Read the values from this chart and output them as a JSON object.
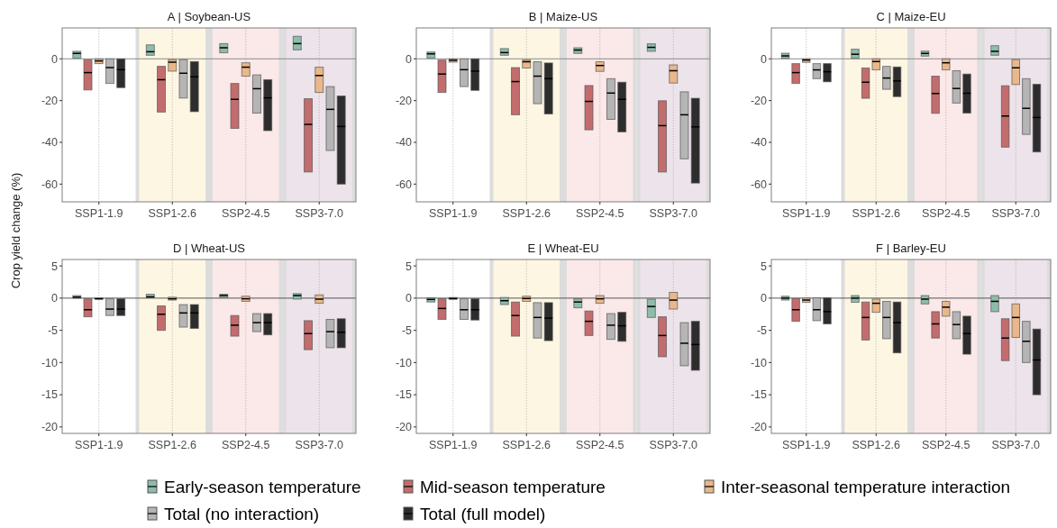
{
  "chart_data": [
    {
      "type": "box",
      "title": "A | Soybean-US",
      "ylabel": "Crop yield change (%)",
      "legend": "bottom",
      "grid": "x",
      "categories": [
        "SSP1-1.9",
        "SSP1-2.6",
        "SSP2-4.5",
        "SSP3-7.0"
      ],
      "ylim": [
        -68.5,
        14.8
      ],
      "yticks": [
        -60,
        -40,
        -20,
        0
      ],
      "ref_lines": [
        {
          "axis": "y",
          "value": 0,
          "color": "#8c8c8c"
        }
      ],
      "bands": [
        {
          "axis": "x",
          "from": "SSP1-2.6",
          "to": "SSP1-2.6",
          "color": "#fdf6e3"
        },
        {
          "axis": "x",
          "from": "SSP2-4.5",
          "to": "SSP2-4.5",
          "color": "#fbe8e8"
        },
        {
          "axis": "x",
          "from": "SSP3-7.0",
          "to": "SSP3-7.0",
          "color": "#ede3ea"
        }
      ],
      "series": [
        {
          "name": "Early-season temperature",
          "color": "#8dbdaa",
          "boxes": [
            {
              "low": 0.4,
              "q1": 0.4,
              "median": 2.6,
              "q3": 3.6,
              "high": 3.6
            },
            {
              "low": 1.7,
              "q1": 1.7,
              "median": 3.4,
              "q3": 6.7,
              "high": 6.7
            },
            {
              "low": 2.9,
              "q1": 2.9,
              "median": 5.3,
              "q3": 7.3,
              "high": 7.3
            },
            {
              "low": 4.3,
              "q1": 4.3,
              "median": 7.3,
              "q3": 10.8,
              "high": 10.8
            }
          ]
        },
        {
          "name": "Mid-season temperature",
          "color": "#c36c6e",
          "boxes": [
            {
              "low": -14.9,
              "q1": -14.9,
              "median": -6.6,
              "q3": -0.4,
              "high": -0.4
            },
            {
              "low": -25.5,
              "q1": -25.5,
              "median": -10,
              "q3": -3.6,
              "high": -3.6
            },
            {
              "low": -33.3,
              "q1": -33.3,
              "median": -19.4,
              "q3": -11.8,
              "high": -11.8
            },
            {
              "low": -54.2,
              "q1": -54.2,
              "median": -31.4,
              "q3": -19.1,
              "high": -19.1
            }
          ]
        },
        {
          "name": "Inter-seasonal temperature interaction",
          "color": "#e9b88a",
          "boxes": [
            {
              "low": -2.3,
              "q1": -2.3,
              "median": -1,
              "q3": 0,
              "high": 0
            },
            {
              "low": -5.9,
              "q1": -5.9,
              "median": -1.6,
              "q3": -0.4,
              "high": -0.4
            },
            {
              "low": -8.3,
              "q1": -8.3,
              "median": -4,
              "q3": -1.9,
              "high": -1.9
            },
            {
              "low": -16.1,
              "q1": -16.1,
              "median": -8,
              "q3": -4,
              "high": -4
            }
          ]
        },
        {
          "name": "Total (no interaction)",
          "color": "#b5b5b5",
          "boxes": [
            {
              "low": -11.8,
              "q1": -11.8,
              "median": -4.2,
              "q3": 0,
              "high": 0
            },
            {
              "low": -18.8,
              "q1": -18.8,
              "median": -6.9,
              "q3": -0.4,
              "high": -0.4
            },
            {
              "low": -26,
              "q1": -26,
              "median": -14.3,
              "q3": -7.7,
              "high": -7.7
            },
            {
              "low": -43.9,
              "q1": -43.9,
              "median": -24.2,
              "q3": -13.3,
              "high": -13.3
            }
          ]
        },
        {
          "name": "Total (full model)",
          "color": "#2d2d2d",
          "boxes": [
            {
              "low": -13.8,
              "q1": -13.8,
              "median": -5.2,
              "q3": 0,
              "high": 0
            },
            {
              "low": -25.3,
              "q1": -25.3,
              "median": -8.6,
              "q3": -1.3,
              "high": -1.3
            },
            {
              "low": -34.4,
              "q1": -34.4,
              "median": -18.7,
              "q3": -10,
              "high": -10
            },
            {
              "low": -60,
              "q1": -60,
              "median": -32.4,
              "q3": -17.8,
              "high": -17.8
            }
          ]
        }
      ]
    },
    {
      "type": "box",
      "title": "B | Maize-US",
      "grid": "x",
      "categories": [
        "SSP1-1.9",
        "SSP1-2.6",
        "SSP2-4.5",
        "SSP3-7.0"
      ],
      "ylim": [
        -68.5,
        14.8
      ],
      "yticks": [
        -60,
        -40,
        -20,
        0
      ],
      "ref_lines": [
        {
          "axis": "y",
          "value": 0,
          "color": "#8c8c8c"
        }
      ],
      "bands": [
        {
          "axis": "x",
          "from": "SSP1-2.6",
          "to": "SSP1-2.6",
          "color": "#fdf6e3"
        },
        {
          "axis": "x",
          "from": "SSP2-4.5",
          "to": "SSP2-4.5",
          "color": "#fbe8e8"
        },
        {
          "axis": "x",
          "from": "SSP3-7.0",
          "to": "SSP3-7.0",
          "color": "#ede3ea"
        }
      ],
      "series": [
        {
          "color": "#8dbdaa",
          "boxes": [
            {
              "low": 0.4,
              "q1": 0.4,
              "median": 2.4,
              "q3": 3.3,
              "high": 3.3
            },
            {
              "low": 1.7,
              "q1": 1.7,
              "median": 3,
              "q3": 4.9,
              "high": 4.9
            },
            {
              "low": 2.6,
              "q1": 2.6,
              "median": 4.2,
              "q3": 5.3,
              "high": 5.3
            },
            {
              "low": 3.6,
              "q1": 3.6,
              "median": 5.5,
              "q3": 7.2,
              "high": 7.2
            }
          ]
        },
        {
          "color": "#c36c6e",
          "boxes": [
            {
              "low": -16.1,
              "q1": -16.1,
              "median": -7.3,
              "q3": -0.6,
              "high": -0.6
            },
            {
              "low": -26.8,
              "q1": -26.8,
              "median": -10.9,
              "q3": -4.2,
              "high": -4.2
            },
            {
              "low": -34,
              "q1": -34,
              "median": -20.4,
              "q3": -12.8,
              "high": -12.8
            },
            {
              "low": -54.2,
              "q1": -54.2,
              "median": -32,
              "q3": -20.1,
              "high": -20.1
            }
          ]
        },
        {
          "color": "#e9b88a",
          "boxes": [
            {
              "low": -1.6,
              "q1": -1.6,
              "median": -0.7,
              "q3": 0,
              "high": 0
            },
            {
              "low": -4.4,
              "q1": -4.4,
              "median": -1.4,
              "q3": -0.6,
              "high": -0.6
            },
            {
              "low": -6,
              "q1": -6,
              "median": -3.2,
              "q3": -1.4,
              "high": -1.4
            },
            {
              "low": -11.6,
              "q1": -11.6,
              "median": -5.7,
              "q3": -2.9,
              "high": -2.9
            }
          ]
        },
        {
          "color": "#b5b5b5",
          "boxes": [
            {
              "low": -13.3,
              "q1": -13.3,
              "median": -5.2,
              "q3": 0,
              "high": 0
            },
            {
              "low": -21.5,
              "q1": -21.5,
              "median": -8.3,
              "q3": -1.4,
              "high": -1.4
            },
            {
              "low": -29,
              "q1": -29,
              "median": -16.4,
              "q3": -9.5,
              "high": -9.5
            },
            {
              "low": -47.9,
              "q1": -47.9,
              "median": -26.8,
              "q3": -15.8,
              "high": -15.8
            }
          ]
        },
        {
          "color": "#2d2d2d",
          "boxes": [
            {
              "low": -15.1,
              "q1": -15.1,
              "median": -5.9,
              "q3": 0,
              "high": 0
            },
            {
              "low": -26.4,
              "q1": -26.4,
              "median": -9.5,
              "q3": -2,
              "high": -2
            },
            {
              "low": -35,
              "q1": -35,
              "median": -19.4,
              "q3": -11.2,
              "high": -11.2
            },
            {
              "low": -59.5,
              "q1": -59.5,
              "median": -32.6,
              "q3": -18.9,
              "high": -18.9
            }
          ]
        }
      ]
    },
    {
      "type": "box",
      "title": "C | Maize-EU",
      "grid": "x",
      "categories": [
        "SSP1-1.9",
        "SSP1-2.6",
        "SSP2-4.5",
        "SSP3-7.0"
      ],
      "ylim": [
        -68.5,
        14.8
      ],
      "yticks": [
        -60,
        -40,
        -20,
        0
      ],
      "ref_lines": [
        {
          "axis": "y",
          "value": 0,
          "color": "#8c8c8c"
        }
      ],
      "bands": [
        {
          "axis": "x",
          "from": "SSP1-2.6",
          "to": "SSP1-2.6",
          "color": "#fdf6e3"
        },
        {
          "axis": "x",
          "from": "SSP2-4.5",
          "to": "SSP2-4.5",
          "color": "#fbe8e8"
        },
        {
          "axis": "x",
          "from": "SSP3-7.0",
          "to": "SSP3-7.0",
          "color": "#ede3ea"
        }
      ],
      "series": [
        {
          "color": "#8dbdaa",
          "boxes": [
            {
              "low": 0.3,
              "q1": 0.3,
              "median": 1.4,
              "q3": 2.7,
              "high": 2.7
            },
            {
              "low": 0.3,
              "q1": 0.3,
              "median": 2.2,
              "q3": 4.6,
              "high": 4.6
            },
            {
              "low": 1.3,
              "q1": 1.3,
              "median": 2.6,
              "q3": 3.7,
              "high": 3.7
            },
            {
              "low": 1.7,
              "q1": 1.7,
              "median": 3.6,
              "q3": 6.3,
              "high": 6.3
            }
          ]
        },
        {
          "color": "#c36c6e",
          "boxes": [
            {
              "low": -11.8,
              "q1": -11.8,
              "median": -6.6,
              "q3": -2.3,
              "high": -2.3
            },
            {
              "low": -18.9,
              "q1": -18.9,
              "median": -11.2,
              "q3": -4.4,
              "high": -4.4
            },
            {
              "low": -26.1,
              "q1": -26.1,
              "median": -16.6,
              "q3": -8.3,
              "high": -8.3
            },
            {
              "low": -42.3,
              "q1": -42.3,
              "median": -27.4,
              "q3": -12.9,
              "high": -12.9
            }
          ]
        },
        {
          "color": "#e9b88a",
          "boxes": [
            {
              "low": -1.7,
              "q1": -1.7,
              "median": -0.6,
              "q3": 0,
              "high": 0
            },
            {
              "low": -5.3,
              "q1": -5.3,
              "median": -1.3,
              "q3": 0,
              "high": 0
            },
            {
              "low": -5.3,
              "q1": -5.3,
              "median": -1.9,
              "q3": 0,
              "high": 0
            },
            {
              "low": -12.3,
              "q1": -12.3,
              "median": -4.3,
              "q3": -0.3,
              "high": -0.3
            }
          ]
        },
        {
          "color": "#b5b5b5",
          "boxes": [
            {
              "low": -9.5,
              "q1": -9.5,
              "median": -5.3,
              "q3": -2.3,
              "high": -2.3
            },
            {
              "low": -14.6,
              "q1": -14.6,
              "median": -9.2,
              "q3": -3.6,
              "high": -3.6
            },
            {
              "low": -21.2,
              "q1": -21.2,
              "median": -14.2,
              "q3": -5.7,
              "high": -5.7
            },
            {
              "low": -36.2,
              "q1": -36.2,
              "median": -23.7,
              "q3": -9.5,
              "high": -9.5
            }
          ]
        },
        {
          "color": "#2d2d2d",
          "boxes": [
            {
              "low": -11,
              "q1": -11,
              "median": -6.2,
              "q3": -2.3,
              "high": -2.3
            },
            {
              "low": -18.1,
              "q1": -18.1,
              "median": -10.6,
              "q3": -3.9,
              "high": -3.9
            },
            {
              "low": -26,
              "q1": -26,
              "median": -16.5,
              "q3": -7.3,
              "high": -7.3
            },
            {
              "low": -44.6,
              "q1": -44.6,
              "median": -28.1,
              "q3": -12.2,
              "high": -12.2
            }
          ]
        }
      ]
    },
    {
      "type": "box",
      "title": "D | Wheat-US",
      "grid": "x",
      "categories": [
        "SSP1-1.9",
        "SSP1-2.6",
        "SSP2-4.5",
        "SSP3-7.0"
      ],
      "ylim": [
        -21,
        6
      ],
      "yticks": [
        -20,
        -15,
        -10,
        -5,
        0,
        5
      ],
      "ref_lines": [
        {
          "axis": "y",
          "value": 0,
          "color": "#555555"
        }
      ],
      "bands": [
        {
          "axis": "x",
          "from": "SSP1-2.6",
          "to": "SSP1-2.6",
          "color": "#fdf6e3"
        },
        {
          "axis": "x",
          "from": "SSP2-4.5",
          "to": "SSP2-4.5",
          "color": "#fbe8e8"
        },
        {
          "axis": "x",
          "from": "SSP3-7.0",
          "to": "SSP3-7.0",
          "color": "#ede3ea"
        }
      ],
      "series": [
        {
          "color": "#8dbdaa",
          "boxes": [
            {
              "low": 0,
              "q1": 0,
              "median": 0.15,
              "q3": 0.4,
              "high": 0.4
            },
            {
              "low": 0.05,
              "q1": 0.05,
              "median": 0.2,
              "q3": 0.6,
              "high": 0.6
            },
            {
              "low": 0.05,
              "q1": 0.05,
              "median": 0.4,
              "q3": 0.6,
              "high": 0.6
            },
            {
              "low": -0.15,
              "q1": -0.15,
              "median": 0.4,
              "q3": 0.7,
              "high": 0.7
            }
          ]
        },
        {
          "color": "#c36c6e",
          "boxes": [
            {
              "low": -2.9,
              "q1": -2.9,
              "median": -1.8,
              "q3": -0.1,
              "high": -0.1
            },
            {
              "low": -5,
              "q1": -5,
              "median": -2.5,
              "q3": -1.2,
              "high": -1.2
            },
            {
              "low": -5.9,
              "q1": -5.9,
              "median": -4.2,
              "q3": -2.7,
              "high": -2.7
            },
            {
              "low": -8,
              "q1": -8,
              "median": -5.5,
              "q3": -3.5,
              "high": -3.5
            }
          ]
        },
        {
          "color": "#e9b88a",
          "boxes": [
            {
              "low": -0.15,
              "q1": -0.15,
              "median": -0.1,
              "q3": 0,
              "high": 0
            },
            {
              "low": -0.3,
              "q1": -0.3,
              "median": -0.1,
              "q3": 0.15,
              "high": 0.15
            },
            {
              "low": -0.5,
              "q1": -0.5,
              "median": -0.1,
              "q3": 0.3,
              "high": 0.3
            },
            {
              "low": -0.8,
              "q1": -0.8,
              "median": -0.15,
              "q3": 0.5,
              "high": 0.5
            }
          ]
        },
        {
          "color": "#b5b5b5",
          "boxes": [
            {
              "low": -2.7,
              "q1": -2.7,
              "median": -1.7,
              "q3": -0.1,
              "high": -0.1
            },
            {
              "low": -4.5,
              "q1": -4.5,
              "median": -2.3,
              "q3": -1,
              "high": -1
            },
            {
              "low": -5.2,
              "q1": -5.2,
              "median": -3.8,
              "q3": -2.4,
              "high": -2.4
            },
            {
              "low": -7.7,
              "q1": -7.7,
              "median": -5.2,
              "q3": -3.3,
              "high": -3.3
            }
          ]
        },
        {
          "color": "#2d2d2d",
          "boxes": [
            {
              "low": -2.7,
              "q1": -2.7,
              "median": -1.7,
              "q3": -0.1,
              "high": -0.1
            },
            {
              "low": -4.7,
              "q1": -4.7,
              "median": -2.3,
              "q3": -1,
              "high": -1
            },
            {
              "low": -5.7,
              "q1": -5.7,
              "median": -3.8,
              "q3": -2.4,
              "high": -2.4
            },
            {
              "low": -7.7,
              "q1": -7.7,
              "median": -5.3,
              "q3": -3.2,
              "high": -3.2
            }
          ]
        }
      ]
    },
    {
      "type": "box",
      "title": "E | Wheat-EU",
      "grid": "x",
      "categories": [
        "SSP1-1.9",
        "SSP1-2.6",
        "SSP2-4.5",
        "SSP3-7.0"
      ],
      "ylim": [
        -21,
        6
      ],
      "yticks": [
        -20,
        -15,
        -10,
        -5,
        0,
        5
      ],
      "ref_lines": [
        {
          "axis": "y",
          "value": 0,
          "color": "#555555"
        }
      ],
      "bands": [
        {
          "axis": "x",
          "from": "SSP1-2.6",
          "to": "SSP1-2.6",
          "color": "#fdf6e3"
        },
        {
          "axis": "x",
          "from": "SSP2-4.5",
          "to": "SSP2-4.5",
          "color": "#fbe8e8"
        },
        {
          "axis": "x",
          "from": "SSP3-7.0",
          "to": "SSP3-7.0",
          "color": "#ede3ea"
        }
      ],
      "series": [
        {
          "color": "#8dbdaa",
          "boxes": [
            {
              "low": -0.6,
              "q1": -0.6,
              "median": -0.2,
              "q3": 0.05,
              "high": 0.05
            },
            {
              "low": -1,
              "q1": -1,
              "median": -0.4,
              "q3": 0.1,
              "high": 0.1
            },
            {
              "low": -1.5,
              "q1": -1.5,
              "median": -0.6,
              "q3": -0.1,
              "high": -0.1
            },
            {
              "low": -3,
              "q1": -3,
              "median": -1.3,
              "q3": -0.15,
              "high": -0.15
            }
          ]
        },
        {
          "color": "#c36c6e",
          "boxes": [
            {
              "low": -3.3,
              "q1": -3.3,
              "median": -1.6,
              "q3": -0.1,
              "high": -0.1
            },
            {
              "low": -5.9,
              "q1": -5.9,
              "median": -2.7,
              "q3": -0.6,
              "high": -0.6
            },
            {
              "low": -5.8,
              "q1": -5.8,
              "median": -3.6,
              "q3": -2,
              "high": -2
            },
            {
              "low": -9.1,
              "q1": -9.1,
              "median": -5.8,
              "q3": -2.9,
              "high": -2.9
            }
          ]
        },
        {
          "color": "#e9b88a",
          "boxes": [
            {
              "low": -0.2,
              "q1": -0.2,
              "median": -0.05,
              "q3": 0.1,
              "high": 0.1
            },
            {
              "low": -0.5,
              "q1": -0.5,
              "median": -0.05,
              "q3": 0.3,
              "high": 0.3
            },
            {
              "low": -0.8,
              "q1": -0.8,
              "median": -0.1,
              "q3": 0.4,
              "high": 0.4
            },
            {
              "low": -1.7,
              "q1": -1.7,
              "median": -0.3,
              "q3": 0.9,
              "high": 0.9
            }
          ]
        },
        {
          "color": "#b5b5b5",
          "boxes": [
            {
              "low": -3.3,
              "q1": -3.3,
              "median": -1.8,
              "q3": -0.1,
              "high": -0.1
            },
            {
              "low": -6.2,
              "q1": -6.2,
              "median": -3,
              "q3": -0.7,
              "high": -0.7
            },
            {
              "low": -6.4,
              "q1": -6.4,
              "median": -4.2,
              "q3": -2.4,
              "high": -2.4
            },
            {
              "low": -10.5,
              "q1": -10.5,
              "median": -7,
              "q3": -3.8,
              "high": -3.8
            }
          ]
        },
        {
          "color": "#2d2d2d",
          "boxes": [
            {
              "low": -3.4,
              "q1": -3.4,
              "median": -1.8,
              "q3": -0.1,
              "high": -0.1
            },
            {
              "low": -6.6,
              "q1": -6.6,
              "median": -3.1,
              "q3": -0.7,
              "high": -0.7
            },
            {
              "low": -6.7,
              "q1": -6.7,
              "median": -4.3,
              "q3": -2.2,
              "high": -2.2
            },
            {
              "low": -11.2,
              "q1": -11.2,
              "median": -7.2,
              "q3": -3.6,
              "high": -3.6
            }
          ]
        }
      ]
    },
    {
      "type": "box",
      "title": "F | Barley-EU",
      "grid": "x",
      "categories": [
        "SSP1-1.9",
        "SSP1-2.6",
        "SSP2-4.5",
        "SSP3-7.0"
      ],
      "ylim": [
        -21,
        6
      ],
      "yticks": [
        -20,
        -15,
        -10,
        -5,
        0,
        5
      ],
      "ref_lines": [
        {
          "axis": "y",
          "value": 0,
          "color": "#555555"
        }
      ],
      "bands": [
        {
          "axis": "x",
          "from": "SSP1-2.6",
          "to": "SSP1-2.6",
          "color": "#fdf6e3"
        },
        {
          "axis": "x",
          "from": "SSP2-4.5",
          "to": "SSP2-4.5",
          "color": "#fbe8e8"
        },
        {
          "axis": "x",
          "from": "SSP3-7.0",
          "to": "SSP3-7.0",
          "color": "#ede3ea"
        }
      ],
      "series": [
        {
          "color": "#8dbdaa",
          "boxes": [
            {
              "low": -0.3,
              "q1": -0.3,
              "median": 0,
              "q3": 0.3,
              "high": 0.3
            },
            {
              "low": -0.65,
              "q1": -0.65,
              "median": 0,
              "q3": 0.4,
              "high": 0.4
            },
            {
              "low": -0.9,
              "q1": -0.9,
              "median": -0.15,
              "q3": 0.4,
              "high": 0.4
            },
            {
              "low": -2.1,
              "q1": -2.1,
              "median": -0.5,
              "q3": 0.4,
              "high": 0.4
            }
          ]
        },
        {
          "color": "#c36c6e",
          "boxes": [
            {
              "low": -3.6,
              "q1": -3.6,
              "median": -1.8,
              "q3": -0.05,
              "high": -0.05
            },
            {
              "low": -6.5,
              "q1": -6.5,
              "median": -3,
              "q3": -0.6,
              "high": -0.6
            },
            {
              "low": -6.2,
              "q1": -6.2,
              "median": -4,
              "q3": -2.1,
              "high": -2.1
            },
            {
              "low": -9.7,
              "q1": -9.7,
              "median": -6.2,
              "q3": -3.2,
              "high": -3.2
            }
          ]
        },
        {
          "color": "#e9b88a",
          "boxes": [
            {
              "low": -0.65,
              "q1": -0.65,
              "median": -0.3,
              "q3": 0,
              "high": 0
            },
            {
              "low": -2.2,
              "q1": -2.2,
              "median": -0.8,
              "q3": -0.15,
              "high": -0.15
            },
            {
              "low": -2.8,
              "q1": -2.8,
              "median": -1.4,
              "q3": -0.5,
              "high": -0.5
            },
            {
              "low": -6.1,
              "q1": -6.1,
              "median": -3,
              "q3": -0.9,
              "high": -0.9
            }
          ]
        },
        {
          "color": "#b5b5b5",
          "boxes": [
            {
              "low": -3.5,
              "q1": -3.5,
              "median": -1.8,
              "q3": 0.05,
              "high": 0.05
            },
            {
              "low": -6.3,
              "q1": -6.3,
              "median": -3,
              "q3": -0.5,
              "high": -0.5
            },
            {
              "low": -6.3,
              "q1": -6.3,
              "median": -4.1,
              "q3": -2.1,
              "high": -2.1
            },
            {
              "low": -10,
              "q1": -10,
              "median": -6.7,
              "q3": -3.6,
              "high": -3.6
            }
          ]
        },
        {
          "color": "#2d2d2d",
          "boxes": [
            {
              "low": -4,
              "q1": -4,
              "median": -2.1,
              "q3": 0.05,
              "high": 0.05
            },
            {
              "low": -8.5,
              "q1": -8.5,
              "median": -3.8,
              "q3": -0.6,
              "high": -0.6
            },
            {
              "low": -8.7,
              "q1": -8.7,
              "median": -5.5,
              "q3": -2.8,
              "high": -2.8
            },
            {
              "low": -15,
              "q1": -15,
              "median": -9.6,
              "q3": -4.8,
              "high": -4.8
            }
          ]
        }
      ]
    }
  ]
}
